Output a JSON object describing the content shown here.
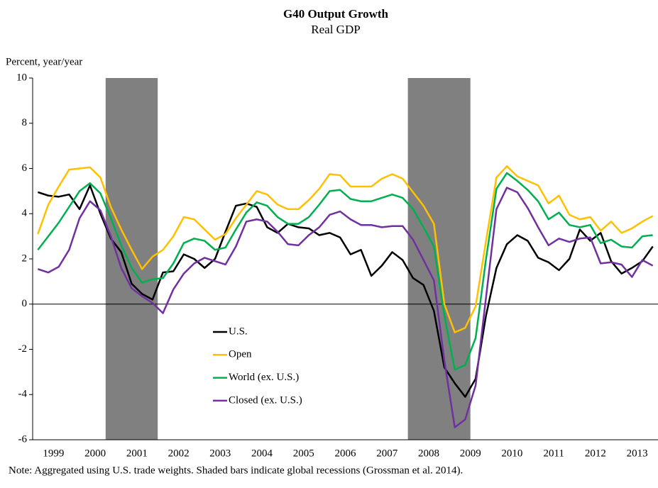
{
  "chart_data": {
    "type": "line",
    "title": "G40 Output Growth",
    "subtitle": "Real GDP",
    "y_axis_label": "Percent, year/year",
    "note": "Note: Aggregated using U.S. trade weights. Shaded bars indicate global recessions (Grossman et al. 2014).",
    "x": [
      1999,
      1999.25,
      1999.5,
      1999.75,
      2000,
      2000.25,
      2000.5,
      2000.75,
      2001,
      2001.25,
      2001.5,
      2001.75,
      2002,
      2002.25,
      2002.5,
      2002.75,
      2003,
      2003.25,
      2003.5,
      2003.75,
      2004,
      2004.25,
      2004.5,
      2004.75,
      2005,
      2005.25,
      2005.5,
      2005.75,
      2006,
      2006.25,
      2006.5,
      2006.75,
      2007,
      2007.25,
      2007.5,
      2007.75,
      2008,
      2008.25,
      2008.5,
      2008.75,
      2009,
      2009.25,
      2009.5,
      2009.75,
      2010,
      2010.25,
      2010.5,
      2010.75,
      2011,
      2011.25,
      2011.5,
      2011.75,
      2012,
      2012.25,
      2012.5,
      2012.75,
      2013,
      2013.25,
      2013.5,
      2013.75
    ],
    "xlim": [
      1998.875,
      2013.875
    ],
    "xticks": [
      {
        "value": 1999.375,
        "label": "1999"
      },
      {
        "value": 2000.375,
        "label": "2000"
      },
      {
        "value": 2001.375,
        "label": "2001"
      },
      {
        "value": 2002.375,
        "label": "2002"
      },
      {
        "value": 2003.375,
        "label": "2003"
      },
      {
        "value": 2004.375,
        "label": "2004"
      },
      {
        "value": 2005.375,
        "label": "2005"
      },
      {
        "value": 2006.375,
        "label": "2006"
      },
      {
        "value": 2007.375,
        "label": "2007"
      },
      {
        "value": 2008.375,
        "label": "2008"
      },
      {
        "value": 2009.375,
        "label": "2009"
      },
      {
        "value": 2010.375,
        "label": "2010"
      },
      {
        "value": 2011.375,
        "label": "2011"
      },
      {
        "value": 2012.375,
        "label": "2012"
      },
      {
        "value": 2013.375,
        "label": "2013"
      }
    ],
    "ylim": [
      -6,
      10
    ],
    "yticks": [
      -6,
      -4,
      -2,
      0,
      2,
      4,
      6,
      8,
      10
    ],
    "recessions": [
      [
        2000.625,
        2001.875
      ],
      [
        2007.875,
        2009.375
      ]
    ],
    "recession_color": "#808080",
    "series": [
      {
        "name": "U.S.",
        "color": "#000000",
        "values": [
          4.95,
          4.8,
          4.75,
          4.85,
          4.2,
          5.25,
          4.0,
          2.9,
          2.3,
          0.9,
          0.45,
          0.2,
          1.4,
          1.45,
          2.2,
          2.0,
          1.6,
          2.0,
          3.2,
          4.35,
          4.45,
          4.3,
          3.4,
          3.15,
          3.55,
          3.4,
          3.35,
          3.05,
          3.15,
          2.95,
          2.2,
          2.4,
          1.25,
          1.7,
          2.3,
          1.95,
          1.15,
          0.85,
          -0.3,
          -2.8,
          -3.5,
          -4.1,
          -3.3,
          -0.5,
          1.6,
          2.65,
          3.05,
          2.8,
          2.05,
          1.85,
          1.5,
          2.0,
          3.3,
          2.8,
          3.15,
          1.9,
          1.35,
          1.6,
          1.9,
          2.55
        ]
      },
      {
        "name": "Open",
        "color": "#ffc000",
        "values": [
          3.1,
          4.4,
          5.2,
          5.95,
          6.0,
          6.05,
          5.6,
          4.3,
          3.3,
          2.4,
          1.55,
          2.1,
          2.4,
          3.0,
          3.85,
          3.75,
          3.3,
          2.85,
          3.1,
          3.8,
          4.4,
          5.0,
          4.85,
          4.4,
          4.2,
          4.2,
          4.6,
          5.1,
          5.75,
          5.7,
          5.2,
          5.2,
          5.2,
          5.55,
          5.75,
          5.55,
          4.95,
          4.35,
          3.55,
          0.0,
          -1.25,
          -1.05,
          -0.1,
          2.8,
          5.6,
          6.1,
          5.65,
          5.45,
          5.25,
          4.45,
          4.8,
          3.95,
          3.75,
          3.85,
          3.25,
          3.65,
          3.15,
          3.35,
          3.65,
          3.9
        ]
      },
      {
        "name": "World (ex. U.S.)",
        "color": "#00b050",
        "values": [
          2.4,
          3.0,
          3.6,
          4.3,
          5.0,
          5.35,
          4.9,
          3.8,
          2.6,
          1.6,
          0.95,
          1.1,
          1.15,
          1.8,
          2.7,
          2.9,
          2.8,
          2.4,
          2.5,
          3.3,
          4.05,
          4.5,
          4.35,
          3.85,
          3.55,
          3.55,
          3.85,
          4.4,
          5.0,
          5.05,
          4.65,
          4.55,
          4.55,
          4.7,
          4.85,
          4.7,
          4.2,
          3.4,
          2.55,
          -0.5,
          -2.9,
          -2.7,
          -1.5,
          2.0,
          5.1,
          5.8,
          5.45,
          5.05,
          4.55,
          3.75,
          4.05,
          3.5,
          3.4,
          3.5,
          2.7,
          2.85,
          2.55,
          2.5,
          3.0,
          3.05
        ]
      },
      {
        "name": "Closed (ex. U.S.)",
        "color": "#7030a0",
        "values": [
          1.55,
          1.4,
          1.65,
          2.4,
          3.8,
          4.55,
          4.15,
          3.0,
          1.6,
          0.7,
          0.35,
          0.05,
          -0.4,
          0.65,
          1.35,
          1.8,
          2.05,
          1.9,
          1.75,
          2.55,
          3.65,
          3.75,
          3.65,
          3.2,
          2.65,
          2.6,
          3.05,
          3.4,
          3.95,
          4.1,
          3.75,
          3.5,
          3.5,
          3.4,
          3.45,
          3.45,
          2.85,
          1.95,
          1.05,
          -2.5,
          -5.45,
          -5.1,
          -3.6,
          0.3,
          4.2,
          5.15,
          4.95,
          4.25,
          3.4,
          2.6,
          2.9,
          2.75,
          2.9,
          2.95,
          1.8,
          1.85,
          1.75,
          1.2,
          1.95,
          1.7
        ]
      }
    ]
  }
}
